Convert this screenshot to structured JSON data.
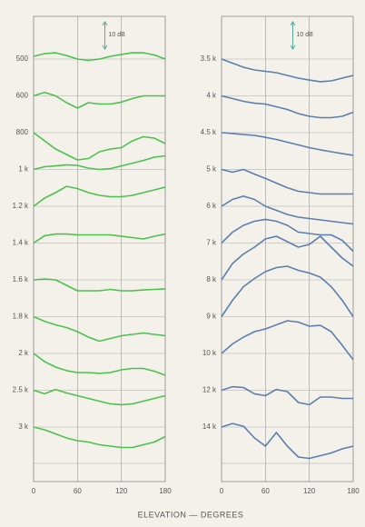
{
  "chart_data": [
    {
      "type": "line",
      "xlabel": "ELEVATION — DEGREES",
      "scale_label": "10 dB",
      "scale_db": 10,
      "x": [
        0,
        15,
        30,
        45,
        60,
        75,
        90,
        105,
        120,
        135,
        150,
        165,
        180
      ],
      "xlim": [
        0,
        180
      ],
      "xticks": [
        0,
        60,
        120,
        180
      ],
      "grid": true,
      "series": [
        {
          "name": "500",
          "color": "#4cc24c",
          "values": [
            1,
            2,
            2.3,
            1.3,
            0,
            -0.5,
            0,
            1,
            1.7,
            2.3,
            2.3,
            1.5,
            0
          ]
        },
        {
          "name": "600",
          "color": "#4cc24c",
          "values": [
            0,
            1.3,
            0,
            -2.5,
            -4.5,
            -2.5,
            -3,
            -3,
            -2.3,
            -1,
            0,
            0,
            0
          ]
        },
        {
          "name": "800",
          "color": "#4cc24c",
          "values": [
            0,
            -3,
            -6,
            -8,
            -10,
            -9.5,
            -7,
            -6,
            -5.5,
            -3,
            -1.5,
            -2,
            -4
          ]
        },
        {
          "name": "1 k",
          "color": "#4cc24c",
          "values": [
            0,
            1,
            1.3,
            1.7,
            1.5,
            0.5,
            0,
            0.3,
            1.3,
            2.3,
            3.3,
            4.5,
            5
          ]
        },
        {
          "name": "1.2 k",
          "color": "#4cc24c",
          "values": [
            0,
            3,
            5,
            7.3,
            6.5,
            5,
            4,
            3.5,
            3.5,
            4,
            5,
            6,
            7
          ]
        },
        {
          "name": "1.4 k",
          "color": "#4cc24c",
          "values": [
            0,
            2.7,
            3.3,
            3.3,
            3,
            3,
            3,
            3,
            2.5,
            2,
            1.5,
            2.5,
            3.3
          ]
        },
        {
          "name": "1.6 k",
          "color": "#4cc24c",
          "values": [
            0,
            0.3,
            0,
            -2,
            -4,
            -4,
            -4,
            -3.5,
            -4,
            -4,
            -3.7,
            -3.5,
            -3.3
          ]
        },
        {
          "name": "1.8 k",
          "color": "#4cc24c",
          "values": [
            0,
            -1.7,
            -3,
            -4,
            -5.5,
            -7.5,
            -9,
            -8,
            -7,
            -6.5,
            -6,
            -6.5,
            -7
          ]
        },
        {
          "name": "2 k",
          "color": "#4cc24c",
          "values": [
            0,
            -3,
            -5,
            -6.3,
            -7,
            -7,
            -7.3,
            -7,
            -6,
            -5.5,
            -5.5,
            -6.5,
            -8
          ]
        },
        {
          "name": "2.5 k",
          "color": "#4cc24c",
          "values": [
            0,
            -1.3,
            0.3,
            -1,
            -2,
            -3,
            -4,
            -5,
            -5.3,
            -5,
            -4,
            -3,
            -2
          ]
        },
        {
          "name": "3 k",
          "color": "#4cc24c",
          "values": [
            0,
            -1,
            -2.5,
            -4,
            -5,
            -5.5,
            -6.5,
            -7,
            -7.5,
            -7.5,
            -6.5,
            -5.5,
            -3.5
          ]
        }
      ]
    },
    {
      "type": "line",
      "scale_label": "10 dB",
      "scale_db": 10,
      "x": [
        0,
        15,
        30,
        45,
        60,
        75,
        90,
        105,
        120,
        135,
        150,
        165,
        180
      ],
      "xlim": [
        0,
        180
      ],
      "xticks": [
        0,
        60,
        120,
        180
      ],
      "grid": true,
      "series": [
        {
          "name": "3.5 k",
          "color": "#5b7fae",
          "values": [
            0,
            -1.5,
            -3,
            -4,
            -4.5,
            -5,
            -6,
            -7,
            -7.7,
            -8.3,
            -8,
            -7,
            -6
          ]
        },
        {
          "name": "4 k",
          "color": "#5b7fae",
          "values": [
            0,
            -1,
            -2,
            -2.7,
            -3,
            -4,
            -5,
            -6.5,
            -7.5,
            -8,
            -8,
            -7.5,
            -6
          ]
        },
        {
          "name": "4.5 k",
          "color": "#5b7fae",
          "values": [
            0,
            -0.3,
            -0.7,
            -1,
            -1.7,
            -2.5,
            -3.5,
            -4.5,
            -5.5,
            -6.3,
            -7,
            -7.7,
            -8.3
          ]
        },
        {
          "name": "5 k",
          "color": "#5b7fae",
          "values": [
            0,
            -1,
            0,
            -1.7,
            -3.3,
            -5,
            -6.7,
            -8,
            -8.5,
            -9,
            -9,
            -9,
            -9
          ]
        },
        {
          "name": "6 k",
          "color": "#5b7fae",
          "values": [
            0,
            2.5,
            3.7,
            2.5,
            0,
            -1.5,
            -3,
            -4,
            -4.5,
            -5,
            -5.5,
            -6,
            -6.5
          ]
        },
        {
          "name": "7 k",
          "color": "#5b7fae",
          "values": [
            0,
            4,
            6.5,
            8,
            8.7,
            8,
            6.5,
            4,
            3.5,
            3,
            3,
            1,
            -3
          ]
        },
        {
          "name": "8 k",
          "color": "#5b7fae",
          "values": [
            0,
            6,
            9.5,
            12,
            15,
            16,
            14,
            12,
            13,
            16,
            12,
            8,
            5
          ]
        },
        {
          "name": "9 k",
          "color": "#5b7fae",
          "values": [
            0,
            6,
            11,
            14,
            16.5,
            18,
            18.5,
            17,
            16,
            14.5,
            11,
            6,
            0
          ]
        },
        {
          "name": "10 k",
          "color": "#5b7fae",
          "values": [
            0,
            3.5,
            6,
            8,
            9,
            10.5,
            12,
            11.5,
            10,
            10.3,
            8,
            3,
            -2.3
          ]
        },
        {
          "name": "12 k",
          "color": "#5b7fae",
          "values": [
            0,
            1.3,
            1,
            -1.3,
            -2,
            0.3,
            -0.5,
            -4.5,
            -5.3,
            -2.5,
            -2.5,
            -3,
            -3
          ]
        },
        {
          "name": "14 k",
          "color": "#5b7fae",
          "values": [
            0,
            1.3,
            0.3,
            -4,
            -7,
            -2,
            -7,
            -11,
            -11.5,
            -10.5,
            -9.5,
            -8,
            -7
          ]
        }
      ]
    }
  ]
}
